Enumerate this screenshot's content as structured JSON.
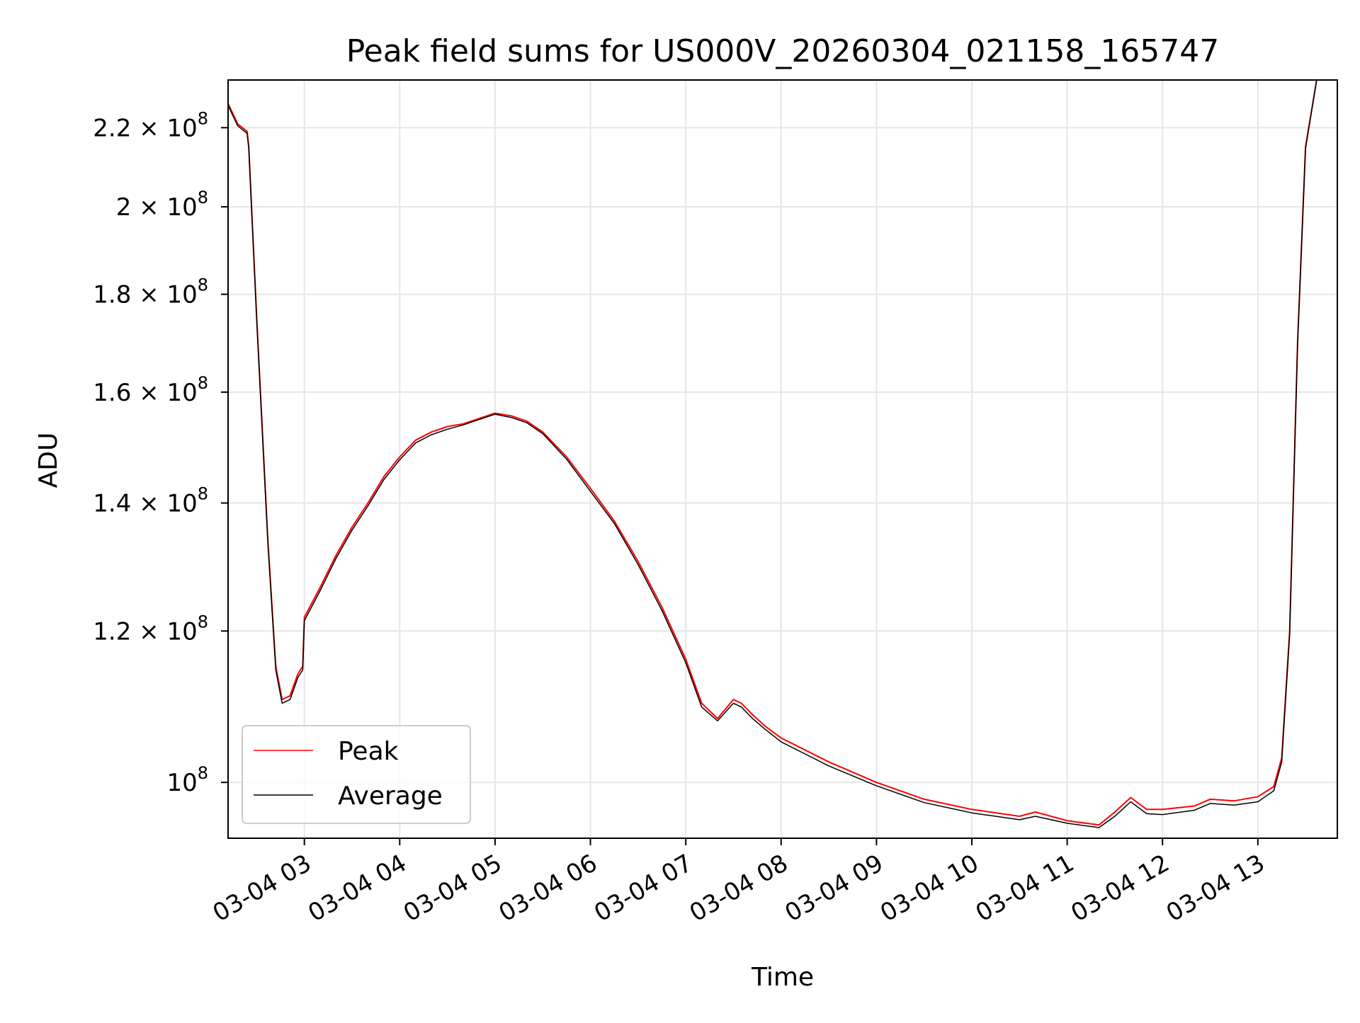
{
  "chart_data": {
    "type": "line",
    "title": "Peak field sums for US000V_20260304_021158_165747",
    "xlabel": "Time",
    "ylabel": "ADU",
    "yscale": "log",
    "grid": true,
    "legend_position": "lower-left",
    "xlim": [
      "2026-03-04 02:12",
      "2026-03-04 13:50"
    ],
    "ylim": [
      93500000,
      233000000
    ],
    "x_ticks": [
      {
        "value": "2026-03-04 03:00",
        "label": "03-04 03"
      },
      {
        "value": "2026-03-04 04:00",
        "label": "03-04 04"
      },
      {
        "value": "2026-03-04 05:00",
        "label": "03-04 05"
      },
      {
        "value": "2026-03-04 06:00",
        "label": "03-04 06"
      },
      {
        "value": "2026-03-04 07:00",
        "label": "03-04 07"
      },
      {
        "value": "2026-03-04 08:00",
        "label": "03-04 08"
      },
      {
        "value": "2026-03-04 09:00",
        "label": "03-04 09"
      },
      {
        "value": "2026-03-04 10:00",
        "label": "03-04 10"
      },
      {
        "value": "2026-03-04 11:00",
        "label": "03-04 11"
      },
      {
        "value": "2026-03-04 12:00",
        "label": "03-04 12"
      },
      {
        "value": "2026-03-04 13:00",
        "label": "03-04 13"
      }
    ],
    "y_ticks": [
      {
        "value": 100000000,
        "mantissa": "",
        "exponent": "8"
      },
      {
        "value": 120000000,
        "mantissa": "1.2",
        "exponent": "8"
      },
      {
        "value": 140000000,
        "mantissa": "1.4",
        "exponent": "8"
      },
      {
        "value": 160000000,
        "mantissa": "1.6",
        "exponent": "8"
      },
      {
        "value": 180000000,
        "mantissa": "1.8",
        "exponent": "8"
      },
      {
        "value": 200000000,
        "mantissa": "2",
        "exponent": "8"
      },
      {
        "value": 220000000,
        "mantissa": "2.2",
        "exponent": "8"
      }
    ],
    "series": [
      {
        "name": "Peak",
        "color": "#ff0000",
        "x": [
          "2026-03-04 02:12",
          "2026-03-04 02:18",
          "2026-03-04 02:24",
          "2026-03-04 02:25",
          "2026-03-04 02:30",
          "2026-03-04 02:37",
          "2026-03-04 02:42",
          "2026-03-04 02:46",
          "2026-03-04 02:51",
          "2026-03-04 02:56",
          "2026-03-04 02:59",
          "2026-03-04 03:00",
          "2026-03-04 03:10",
          "2026-03-04 03:20",
          "2026-03-04 03:30",
          "2026-03-04 03:40",
          "2026-03-04 03:50",
          "2026-03-04 04:00",
          "2026-03-04 04:10",
          "2026-03-04 04:20",
          "2026-03-04 04:30",
          "2026-03-04 04:40",
          "2026-03-04 04:50",
          "2026-03-04 05:00",
          "2026-03-04 05:10",
          "2026-03-04 05:20",
          "2026-03-04 05:30",
          "2026-03-04 05:45",
          "2026-03-04 06:00",
          "2026-03-04 06:15",
          "2026-03-04 06:30",
          "2026-03-04 06:45",
          "2026-03-04 07:00",
          "2026-03-04 07:10",
          "2026-03-04 07:20",
          "2026-03-04 07:30",
          "2026-03-04 07:35",
          "2026-03-04 07:42",
          "2026-03-04 07:50",
          "2026-03-04 08:00",
          "2026-03-04 08:30",
          "2026-03-04 09:00",
          "2026-03-04 09:30",
          "2026-03-04 10:00",
          "2026-03-04 10:30",
          "2026-03-04 10:40",
          "2026-03-04 11:00",
          "2026-03-04 11:20",
          "2026-03-04 11:30",
          "2026-03-04 11:40",
          "2026-03-04 11:50",
          "2026-03-04 12:00",
          "2026-03-04 12:20",
          "2026-03-04 12:30",
          "2026-03-04 12:45",
          "2026-03-04 13:00",
          "2026-03-04 13:10",
          "2026-03-04 13:15",
          "2026-03-04 13:20",
          "2026-03-04 13:25",
          "2026-03-04 13:30",
          "2026-03-04 13:37",
          "2026-03-04 13:50"
        ],
        "y": [
          226500000,
          221000000,
          219000000,
          215000000,
          175000000,
          134000000,
          115000000,
          110500000,
          111000000,
          114000000,
          115000000,
          122000000,
          126500000,
          131500000,
          136000000,
          140000000,
          144500000,
          148000000,
          151000000,
          152500000,
          153500000,
          154000000,
          155000000,
          156000000,
          155500000,
          154500000,
          152500000,
          148000000,
          142500000,
          137000000,
          130500000,
          123500000,
          116000000,
          110000000,
          108000000,
          110500000,
          110000000,
          108500000,
          107000000,
          105500000,
          102500000,
          100000000,
          98000000,
          96800000,
          96000000,
          96500000,
          95500000,
          95000000,
          96500000,
          98200000,
          96800000,
          96800000,
          97200000,
          98000000,
          97800000,
          98300000,
          99500000,
          103000000,
          120000000,
          170000000,
          215000000,
          233000000,
          233000000
        ]
      },
      {
        "name": "Average",
        "color": "#000000",
        "x": [
          "2026-03-04 02:12",
          "2026-03-04 02:18",
          "2026-03-04 02:24",
          "2026-03-04 02:25",
          "2026-03-04 02:30",
          "2026-03-04 02:37",
          "2026-03-04 02:42",
          "2026-03-04 02:46",
          "2026-03-04 02:51",
          "2026-03-04 02:56",
          "2026-03-04 02:59",
          "2026-03-04 03:00",
          "2026-03-04 03:10",
          "2026-03-04 03:20",
          "2026-03-04 03:30",
          "2026-03-04 03:40",
          "2026-03-04 03:50",
          "2026-03-04 04:00",
          "2026-03-04 04:10",
          "2026-03-04 04:20",
          "2026-03-04 04:30",
          "2026-03-04 04:40",
          "2026-03-04 04:50",
          "2026-03-04 05:00",
          "2026-03-04 05:10",
          "2026-03-04 05:20",
          "2026-03-04 05:30",
          "2026-03-04 05:45",
          "2026-03-04 06:00",
          "2026-03-04 06:15",
          "2026-03-04 06:30",
          "2026-03-04 06:45",
          "2026-03-04 07:00",
          "2026-03-04 07:10",
          "2026-03-04 07:20",
          "2026-03-04 07:30",
          "2026-03-04 07:35",
          "2026-03-04 07:42",
          "2026-03-04 07:50",
          "2026-03-04 08:00",
          "2026-03-04 08:30",
          "2026-03-04 09:00",
          "2026-03-04 09:30",
          "2026-03-04 10:00",
          "2026-03-04 10:30",
          "2026-03-04 10:40",
          "2026-03-04 11:00",
          "2026-03-04 11:20",
          "2026-03-04 11:30",
          "2026-03-04 11:40",
          "2026-03-04 11:50",
          "2026-03-04 12:00",
          "2026-03-04 12:20",
          "2026-03-04 12:30",
          "2026-03-04 12:45",
          "2026-03-04 13:00",
          "2026-03-04 13:10",
          "2026-03-04 13:15",
          "2026-03-04 13:20",
          "2026-03-04 13:25",
          "2026-03-04 13:30",
          "2026-03-04 13:37",
          "2026-03-04 13:50"
        ],
        "y": [
          226000000,
          220500000,
          218500000,
          214500000,
          174500000,
          133500000,
          114500000,
          110000000,
          110500000,
          113500000,
          114500000,
          121500000,
          126000000,
          131000000,
          135500000,
          139500000,
          144000000,
          147500000,
          150500000,
          152000000,
          153000000,
          153800000,
          154800000,
          155800000,
          155200000,
          154200000,
          152200000,
          147600000,
          142000000,
          136600000,
          130000000,
          123000000,
          115500000,
          109500000,
          107700000,
          110000000,
          109500000,
          108000000,
          106600000,
          105000000,
          102000000,
          99600000,
          97600000,
          96400000,
          95600000,
          96000000,
          95200000,
          94700000,
          96000000,
          97700000,
          96300000,
          96200000,
          96700000,
          97500000,
          97300000,
          97700000,
          99000000,
          102500000,
          119500000,
          169500000,
          214500000,
          233000000,
          233000000
        ]
      }
    ]
  }
}
